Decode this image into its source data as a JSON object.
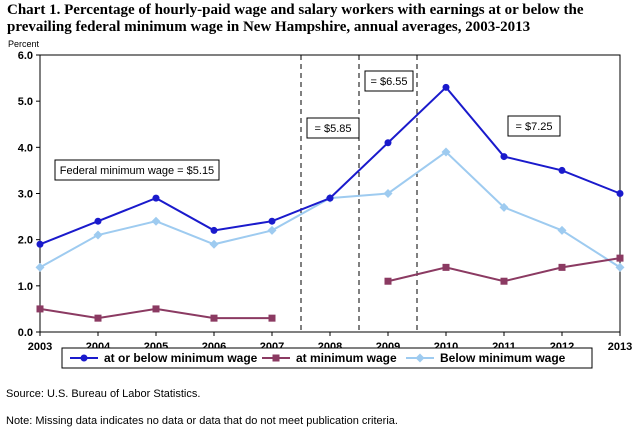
{
  "title": "Chart 1. Percentage of hourly-paid wage and salary workers with earnings at or below the prevailing federal minimum wage in New Hampshire, annual averages, 2003-2013",
  "source": "Source: U.S. Bureau of Labor Statistics.",
  "note": "Note:  Missing data indicates no data or data that do not meet publication criteria.",
  "colors": {
    "at_or_below": "#1a1acc",
    "at_minimum": "#8b3a62",
    "below_minimum": "#9ecbf0"
  },
  "chart_data": {
    "type": "line",
    "title": "Chart 1. Percentage of hourly-paid wage and salary workers with earnings at or below the prevailing federal minimum wage in New Hampshire, annual averages, 2003-2013",
    "ylabel": "Percent",
    "xlabel": "",
    "ylim": [
      0,
      6
    ],
    "yticks": [
      "0.0",
      "1.0",
      "2.0",
      "3.0",
      "4.0",
      "5.0",
      "6.0"
    ],
    "categories": [
      "2003",
      "2004",
      "2005",
      "2006",
      "2007",
      "2008",
      "2009",
      "2010",
      "2011",
      "2012",
      "2013"
    ],
    "series": [
      {
        "name": "at or below minimum wage",
        "marker": "circle",
        "values": [
          1.9,
          2.4,
          2.9,
          2.2,
          2.4,
          2.9,
          4.1,
          5.3,
          3.8,
          3.5,
          3.0
        ]
      },
      {
        "name": "at minimum wage",
        "marker": "square",
        "values": [
          0.5,
          0.3,
          0.5,
          0.3,
          0.3,
          null,
          1.1,
          1.4,
          1.1,
          1.4,
          1.6
        ]
      },
      {
        "name": "Below minimum wage",
        "marker": "diamond",
        "values": [
          1.4,
          2.1,
          2.4,
          1.9,
          2.2,
          2.9,
          3.0,
          3.9,
          2.7,
          2.2,
          1.4
        ]
      }
    ],
    "annotations": [
      {
        "text": "Federal minimum wage = $5.15"
      },
      {
        "text": "= $5.85"
      },
      {
        "text": "= $6.55"
      },
      {
        "text": "= $7.25"
      }
    ],
    "reference_lines_after": [
      "2007",
      "2008",
      "2009"
    ],
    "legend": "bottom"
  }
}
